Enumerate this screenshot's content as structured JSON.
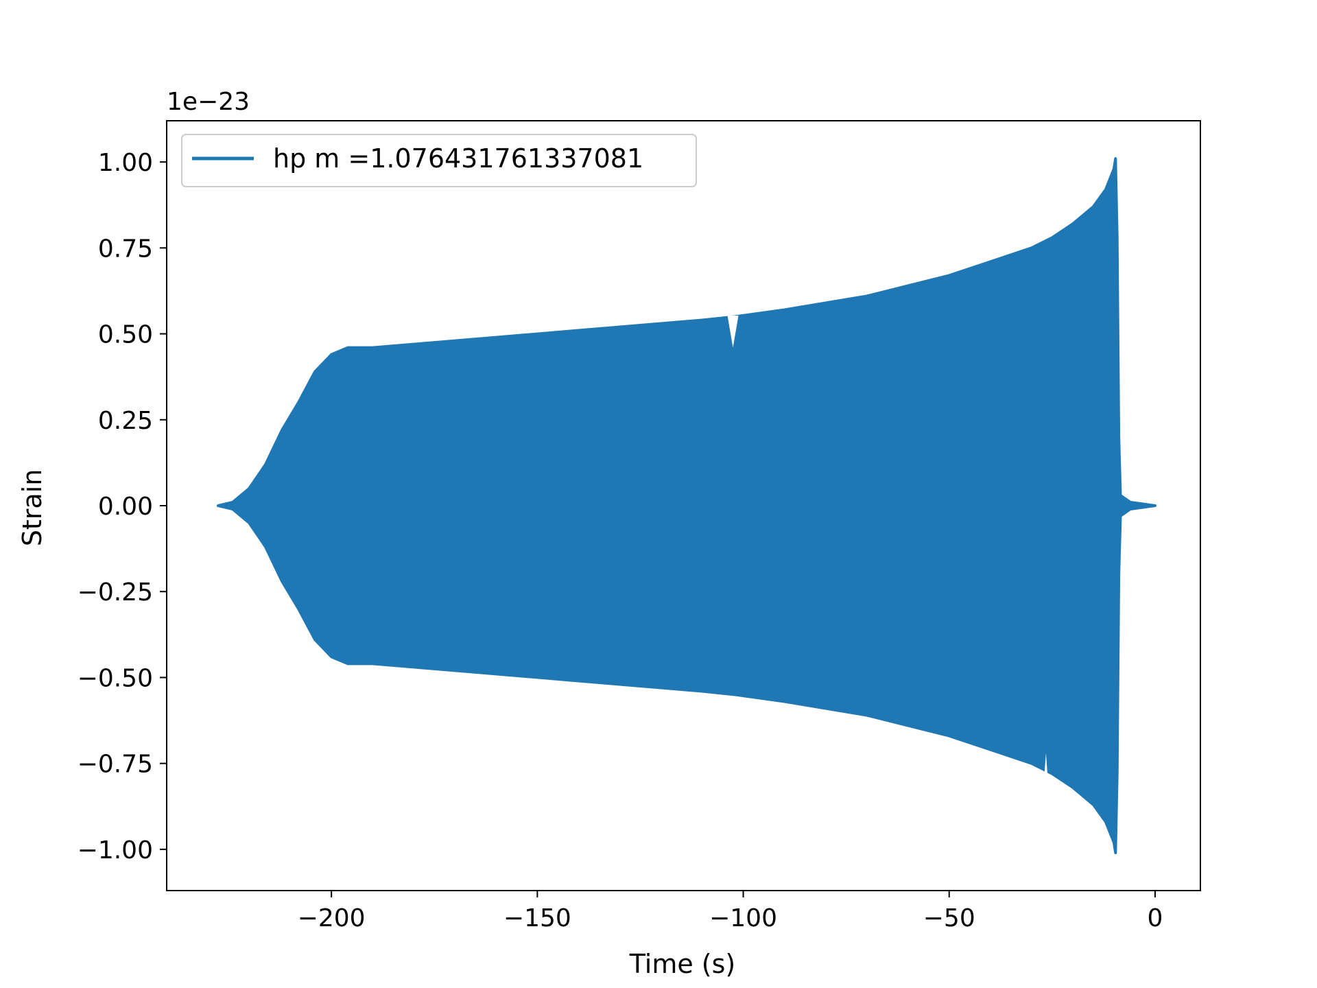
{
  "chart_data": {
    "type": "line",
    "title": "",
    "xlabel": "Time (s)",
    "ylabel": "Strain",
    "offset_label": "1e−23",
    "xlim": [
      -240,
      11
    ],
    "ylim": [
      -1.12,
      1.12
    ],
    "xticks": [
      -200,
      -150,
      -100,
      -50,
      0
    ],
    "xtick_labels": [
      "−200",
      "−150",
      "−100",
      "−50",
      "0"
    ],
    "yticks": [
      1.0,
      0.75,
      0.5,
      0.25,
      0.0,
      -0.25,
      -0.5,
      -0.75,
      -1.0
    ],
    "ytick_labels": [
      "1.00",
      "0.75",
      "0.50",
      "0.25",
      "0.00",
      "−0.25",
      "−0.50",
      "−0.75",
      "−1.00"
    ],
    "grid": false,
    "legend": {
      "position": "top-left",
      "entries": [
        "hp m =1.076431761337081"
      ]
    },
    "series": [
      {
        "name": "hp m =1.076431761337081",
        "color": "#1f77b4",
        "description_values": "envelope of oscillating strain (units of 1e-23)",
        "x": [
          -227.5,
          -224,
          -220,
          -216,
          -212,
          -208,
          -204,
          -200,
          -196,
          -190,
          -180,
          -170,
          -160,
          -150,
          -140,
          -130,
          -120,
          -110,
          -102,
          -90,
          -80,
          -70,
          -60,
          -50,
          -40,
          -30,
          -25,
          -20,
          -15,
          -12,
          -10,
          -9.6,
          -9.2,
          -8.8,
          -8.4,
          -6,
          -3,
          0
        ],
        "upper": [
          0.0,
          0.01,
          0.05,
          0.12,
          0.22,
          0.3,
          0.39,
          0.44,
          0.46,
          0.46,
          0.47,
          0.48,
          0.49,
          0.5,
          0.51,
          0.52,
          0.53,
          0.54,
          0.55,
          0.57,
          0.59,
          0.61,
          0.64,
          0.67,
          0.71,
          0.75,
          0.78,
          0.82,
          0.87,
          0.92,
          0.98,
          1.01,
          0.78,
          0.2,
          0.03,
          0.01,
          0.005,
          0.0
        ],
        "lower": [
          0.0,
          -0.01,
          -0.05,
          -0.12,
          -0.22,
          -0.3,
          -0.39,
          -0.44,
          -0.46,
          -0.46,
          -0.47,
          -0.48,
          -0.49,
          -0.5,
          -0.51,
          -0.52,
          -0.53,
          -0.54,
          -0.55,
          -0.57,
          -0.59,
          -0.61,
          -0.64,
          -0.67,
          -0.71,
          -0.75,
          -0.78,
          -0.82,
          -0.87,
          -0.92,
          -0.98,
          -1.01,
          -0.78,
          -0.2,
          -0.03,
          -0.01,
          -0.005,
          0.0
        ]
      }
    ],
    "dips": [
      {
        "x": -102.5,
        "upper": 0.46
      },
      {
        "x": -26.5,
        "lower": -0.72
      }
    ]
  }
}
